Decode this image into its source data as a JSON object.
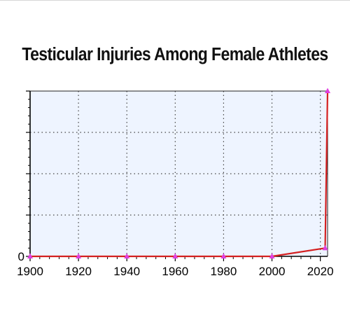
{
  "chart_data": {
    "type": "line",
    "title": "Testicular Injuries Among Female Athletes",
    "xlabel": "",
    "ylabel": "",
    "x_ticks": [
      "1900",
      "1920",
      "1940",
      "1960",
      "1980",
      "2000",
      "2020"
    ],
    "y_ticks": [
      "0"
    ],
    "xlim": [
      1900,
      2023
    ],
    "ylim": [
      0,
      100
    ],
    "grid": true,
    "colors": {
      "plot_background": "#eef4ff",
      "line": "#d42020",
      "marker": "#e040e0"
    },
    "series": [
      {
        "x": [
          1900,
          1920,
          1940,
          1960,
          1980,
          2000,
          2022,
          2023
        ],
        "y": [
          0,
          0,
          0,
          0,
          0,
          0,
          5,
          100
        ]
      }
    ]
  }
}
